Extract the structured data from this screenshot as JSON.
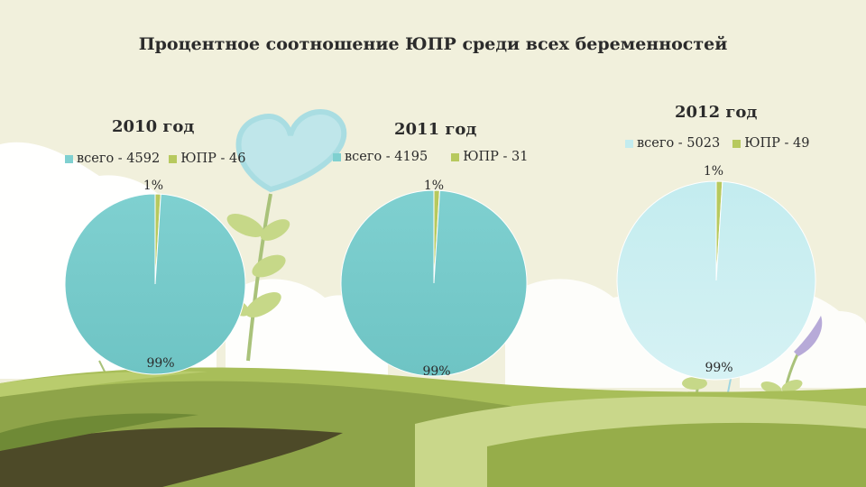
{
  "main_title": "Процентное соотношение ЮПР среди всех беременностей",
  "chart_data": [
    {
      "type": "pie",
      "title": "2010 год",
      "categories": [
        "всего - 4592",
        "ЮПР - 46"
      ],
      "values": [
        99,
        1
      ],
      "labels": [
        "99%",
        "1%"
      ],
      "colors": [
        "#7fd0d0",
        "#b7c95e"
      ],
      "legend_placement": "top"
    },
    {
      "type": "pie",
      "title": "2011 год",
      "categories": [
        "всего - 4195",
        "ЮПР - 31"
      ],
      "values": [
        99,
        1
      ],
      "labels": [
        "99%",
        "1%"
      ],
      "colors": [
        "#7fd0d0",
        "#b7c95e"
      ],
      "legend_placement": "top"
    },
    {
      "type": "pie",
      "title": "2012 год",
      "categories": [
        "всего - 5023",
        "ЮПР - 49"
      ],
      "values": [
        99,
        1
      ],
      "labels": [
        "99%",
        "1%"
      ],
      "colors": [
        "#c3ecef",
        "#b7c95e"
      ],
      "legend_placement": "top"
    }
  ]
}
